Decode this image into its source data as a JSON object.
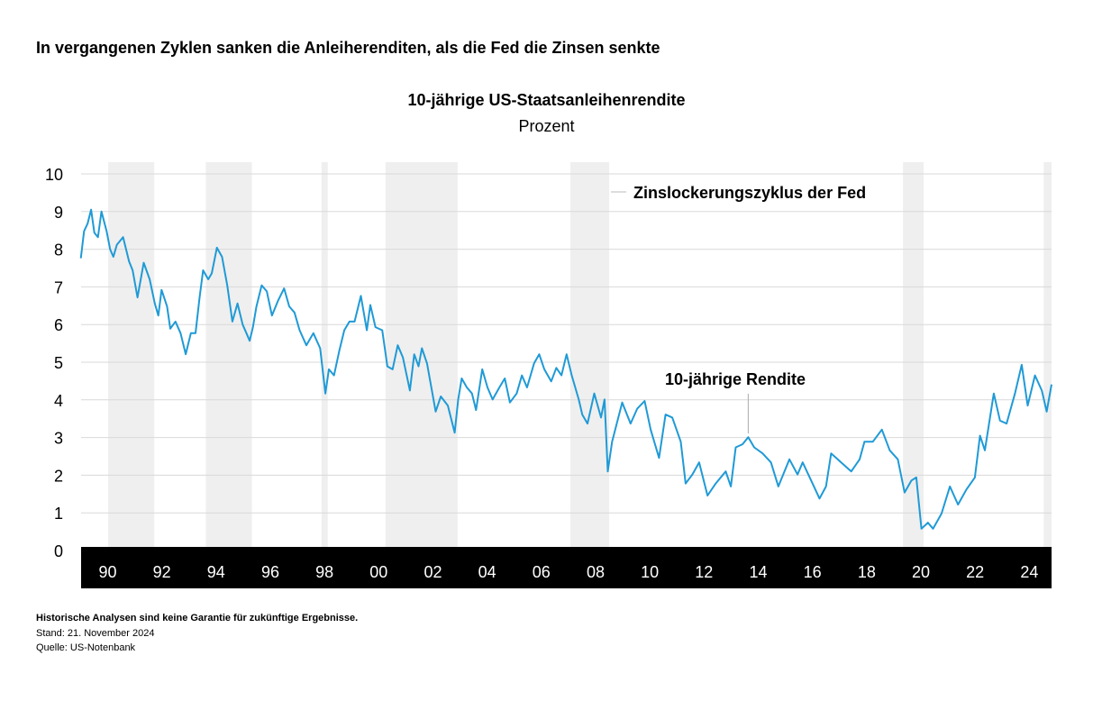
{
  "header": {
    "title": "In vergangenen Zyklen sanken die Anleiherenditen, als die Fed die Zinsen senkte"
  },
  "footer": {
    "disclaimer": "Historische Analysen sind keine Garantie für zukünftige Ergebnisse.",
    "date": "Stand: 21. November 2024",
    "source": "Quelle: US-Notenbank"
  },
  "colors": {
    "line": "#1f9ad6",
    "band": "#efefef",
    "grid": "#d9d9d9",
    "axis_bar": "#000000"
  },
  "chart_data": {
    "type": "line",
    "title": "10-jährige US-Staatsanleihenrendite",
    "subtitle": "Prozent",
    "ylim": [
      0,
      10
    ],
    "y_ticks": [
      "0",
      "1",
      "2",
      "3",
      "4",
      "5",
      "6",
      "7",
      "8",
      "9",
      "10"
    ],
    "x_ticks": [
      {
        "year": 1990,
        "label": "90"
      },
      {
        "year": 1992,
        "label": "92"
      },
      {
        "year": 1994,
        "label": "94"
      },
      {
        "year": 1996,
        "label": "96"
      },
      {
        "year": 1998,
        "label": "98"
      },
      {
        "year": 2000,
        "label": "00"
      },
      {
        "year": 2002,
        "label": "02"
      },
      {
        "year": 2004,
        "label": "04"
      },
      {
        "year": 2006,
        "label": "06"
      },
      {
        "year": 2008,
        "label": "08"
      },
      {
        "year": 2010,
        "label": "10"
      },
      {
        "year": 2012,
        "label": "12"
      },
      {
        "year": 2014,
        "label": "14"
      },
      {
        "year": 2016,
        "label": "16"
      },
      {
        "year": 2018,
        "label": "18"
      },
      {
        "year": 2020,
        "label": "20"
      },
      {
        "year": 2022,
        "label": "22"
      },
      {
        "year": 2024,
        "label": "24"
      }
    ],
    "xlim": [
      1989.1,
      2024.9
    ],
    "grid": true,
    "shaded_periods_label": "Zinslockerungszyklus der Fed",
    "shaded_periods": [
      [
        1990.1,
        1991.8
      ],
      [
        1993.7,
        1995.4
      ],
      [
        1997.97,
        1998.2
      ],
      [
        2000.33,
        2002.99
      ],
      [
        2007.15,
        2008.58
      ],
      [
        2019.42,
        2020.18
      ],
      [
        2024.61,
        2024.9
      ]
    ],
    "series": [
      {
        "name": "10-jährige Rendite",
        "points": [
          [
            1989.09,
            7.76
          ],
          [
            1989.21,
            8.48
          ],
          [
            1989.34,
            8.68
          ],
          [
            1989.47,
            9.05
          ],
          [
            1989.59,
            8.44
          ],
          [
            1989.72,
            8.32
          ],
          [
            1989.85,
            9.0
          ],
          [
            1990.04,
            8.48
          ],
          [
            1990.17,
            8.0
          ],
          [
            1990.29,
            7.8
          ],
          [
            1990.42,
            8.12
          ],
          [
            1990.65,
            8.32
          ],
          [
            1990.87,
            7.68
          ],
          [
            1991.0,
            7.44
          ],
          [
            1991.18,
            6.72
          ],
          [
            1991.41,
            7.64
          ],
          [
            1991.63,
            7.2
          ],
          [
            1991.82,
            6.56
          ],
          [
            1991.95,
            6.24
          ],
          [
            1992.07,
            6.92
          ],
          [
            1992.27,
            6.48
          ],
          [
            1992.39,
            5.89
          ],
          [
            1992.58,
            6.08
          ],
          [
            1992.77,
            5.77
          ],
          [
            1992.96,
            5.21
          ],
          [
            1993.15,
            5.77
          ],
          [
            1993.32,
            5.77
          ],
          [
            1993.47,
            6.72
          ],
          [
            1993.6,
            7.44
          ],
          [
            1993.79,
            7.2
          ],
          [
            1993.92,
            7.36
          ],
          [
            1994.11,
            8.04
          ],
          [
            1994.3,
            7.8
          ],
          [
            1994.49,
            7.04
          ],
          [
            1994.68,
            6.08
          ],
          [
            1994.87,
            6.56
          ],
          [
            1995.06,
            6.0
          ],
          [
            1995.32,
            5.57
          ],
          [
            1995.44,
            5.93
          ],
          [
            1995.57,
            6.48
          ],
          [
            1995.76,
            7.04
          ],
          [
            1995.95,
            6.88
          ],
          [
            1996.14,
            6.24
          ],
          [
            1996.37,
            6.64
          ],
          [
            1996.59,
            6.96
          ],
          [
            1996.78,
            6.48
          ],
          [
            1996.97,
            6.32
          ],
          [
            1997.16,
            5.85
          ],
          [
            1997.41,
            5.45
          ],
          [
            1997.67,
            5.77
          ],
          [
            1997.92,
            5.37
          ],
          [
            1998.11,
            4.17
          ],
          [
            1998.24,
            4.81
          ],
          [
            1998.43,
            4.65
          ],
          [
            1998.62,
            5.29
          ],
          [
            1998.81,
            5.85
          ],
          [
            1999.0,
            6.08
          ],
          [
            1999.19,
            6.08
          ],
          [
            1999.42,
            6.76
          ],
          [
            1999.64,
            5.85
          ],
          [
            1999.77,
            6.52
          ],
          [
            1999.96,
            5.93
          ],
          [
            2000.21,
            5.85
          ],
          [
            2000.4,
            4.89
          ],
          [
            2000.59,
            4.81
          ],
          [
            2000.78,
            5.45
          ],
          [
            2000.97,
            5.13
          ],
          [
            2001.23,
            4.25
          ],
          [
            2001.39,
            5.21
          ],
          [
            2001.55,
            4.89
          ],
          [
            2001.67,
            5.37
          ],
          [
            2001.86,
            4.97
          ],
          [
            2002.06,
            4.17
          ],
          [
            2002.18,
            3.69
          ],
          [
            2002.37,
            4.09
          ],
          [
            2002.63,
            3.85
          ],
          [
            2002.88,
            3.13
          ],
          [
            2003.01,
            4.01
          ],
          [
            2003.14,
            4.57
          ],
          [
            2003.33,
            4.33
          ],
          [
            2003.52,
            4.17
          ],
          [
            2003.67,
            3.73
          ],
          [
            2003.9,
            4.81
          ],
          [
            2004.09,
            4.33
          ],
          [
            2004.28,
            4.01
          ],
          [
            2004.53,
            4.33
          ],
          [
            2004.73,
            4.57
          ],
          [
            2004.92,
            3.93
          ],
          [
            2005.17,
            4.17
          ],
          [
            2005.36,
            4.65
          ],
          [
            2005.55,
            4.33
          ],
          [
            2005.81,
            4.97
          ],
          [
            2006.0,
            5.21
          ],
          [
            2006.19,
            4.81
          ],
          [
            2006.44,
            4.49
          ],
          [
            2006.63,
            4.85
          ],
          [
            2006.82,
            4.65
          ],
          [
            2007.01,
            5.21
          ],
          [
            2007.2,
            4.65
          ],
          [
            2007.46,
            4.01
          ],
          [
            2007.59,
            3.61
          ],
          [
            2007.78,
            3.37
          ],
          [
            2008.03,
            4.17
          ],
          [
            2008.28,
            3.53
          ],
          [
            2008.41,
            4.01
          ],
          [
            2008.53,
            2.1
          ],
          [
            2008.69,
            2.89
          ],
          [
            2009.06,
            3.93
          ],
          [
            2009.37,
            3.37
          ],
          [
            2009.62,
            3.77
          ],
          [
            2009.89,
            3.97
          ],
          [
            2010.11,
            3.21
          ],
          [
            2010.42,
            2.46
          ],
          [
            2010.66,
            3.61
          ],
          [
            2010.91,
            3.53
          ],
          [
            2011.22,
            2.89
          ],
          [
            2011.4,
            1.78
          ],
          [
            2011.65,
            2.02
          ],
          [
            2011.9,
            2.34
          ],
          [
            2012.21,
            1.46
          ],
          [
            2012.51,
            1.78
          ],
          [
            2012.88,
            2.1
          ],
          [
            2013.07,
            1.7
          ],
          [
            2013.25,
            2.74
          ],
          [
            2013.5,
            2.82
          ],
          [
            2013.71,
            3.01
          ],
          [
            2013.93,
            2.74
          ],
          [
            2014.24,
            2.58
          ],
          [
            2014.55,
            2.34
          ],
          [
            2014.82,
            1.7
          ],
          [
            2015.23,
            2.42
          ],
          [
            2015.53,
            2.02
          ],
          [
            2015.72,
            2.34
          ],
          [
            2016.03,
            1.86
          ],
          [
            2016.34,
            1.38
          ],
          [
            2016.58,
            1.7
          ],
          [
            2016.77,
            2.58
          ],
          [
            2017.14,
            2.34
          ],
          [
            2017.51,
            2.1
          ],
          [
            2017.82,
            2.42
          ],
          [
            2018.0,
            2.89
          ],
          [
            2018.31,
            2.89
          ],
          [
            2018.64,
            3.21
          ],
          [
            2018.93,
            2.66
          ],
          [
            2019.23,
            2.42
          ],
          [
            2019.48,
            1.54
          ],
          [
            2019.73,
            1.86
          ],
          [
            2019.91,
            1.94
          ],
          [
            2020.1,
            0.58
          ],
          [
            2020.34,
            0.74
          ],
          [
            2020.53,
            0.58
          ],
          [
            2020.84,
            0.98
          ],
          [
            2021.15,
            1.7
          ],
          [
            2021.45,
            1.22
          ],
          [
            2021.76,
            1.62
          ],
          [
            2022.07,
            1.94
          ],
          [
            2022.26,
            3.05
          ],
          [
            2022.44,
            2.66
          ],
          [
            2022.77,
            4.17
          ],
          [
            2023.0,
            3.45
          ],
          [
            2023.24,
            3.37
          ],
          [
            2023.55,
            4.17
          ],
          [
            2023.8,
            4.93
          ],
          [
            2024.02,
            3.85
          ],
          [
            2024.29,
            4.65
          ],
          [
            2024.54,
            4.25
          ],
          [
            2024.72,
            3.69
          ],
          [
            2024.9,
            4.41
          ]
        ]
      }
    ],
    "annotation_point": [
      2013.71,
      3.01
    ]
  }
}
